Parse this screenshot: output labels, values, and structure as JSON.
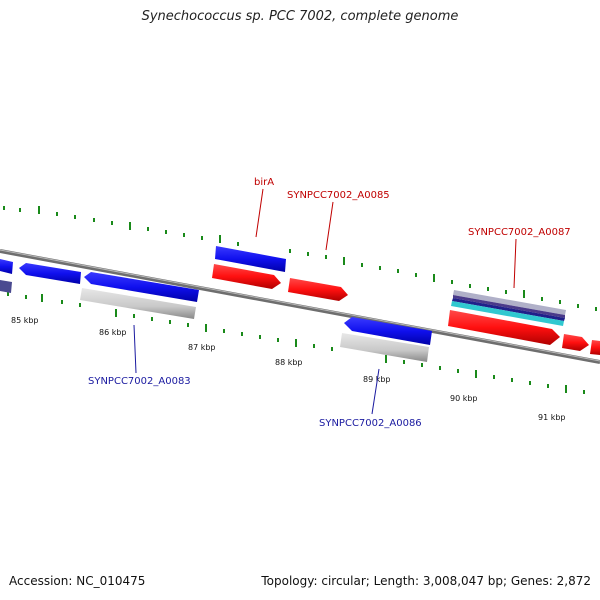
{
  "title": "Synechococcus sp. PCC 7002, complete genome",
  "footer": {
    "accession": "Accession: NC_010475",
    "topology": "Topology: circular; Length: 3,008,047 bp; Genes: 2,872"
  },
  "kbp_labels": [
    "85 kbp",
    "86 kbp",
    "87 kbp",
    "88 kbp",
    "89 kbp",
    "90 kbp",
    "91 kbp"
  ],
  "gene_labels": {
    "birA": "birA",
    "a0085": "SYNPCC7002_A0085",
    "a0087": "SYNPCC7002_A0087",
    "a0083": "SYNPCC7002_A0083",
    "a0086": "SYNPCC7002_A0086"
  },
  "colors": {
    "forward_gene": "#ff1010",
    "reverse_gene": "#1010ee",
    "backbone": "#808080",
    "cds_feature": "#c8c8c8",
    "ticks": "#1a8a1a",
    "label_red": "#c00000",
    "label_blue": "#1a1aa0"
  }
}
